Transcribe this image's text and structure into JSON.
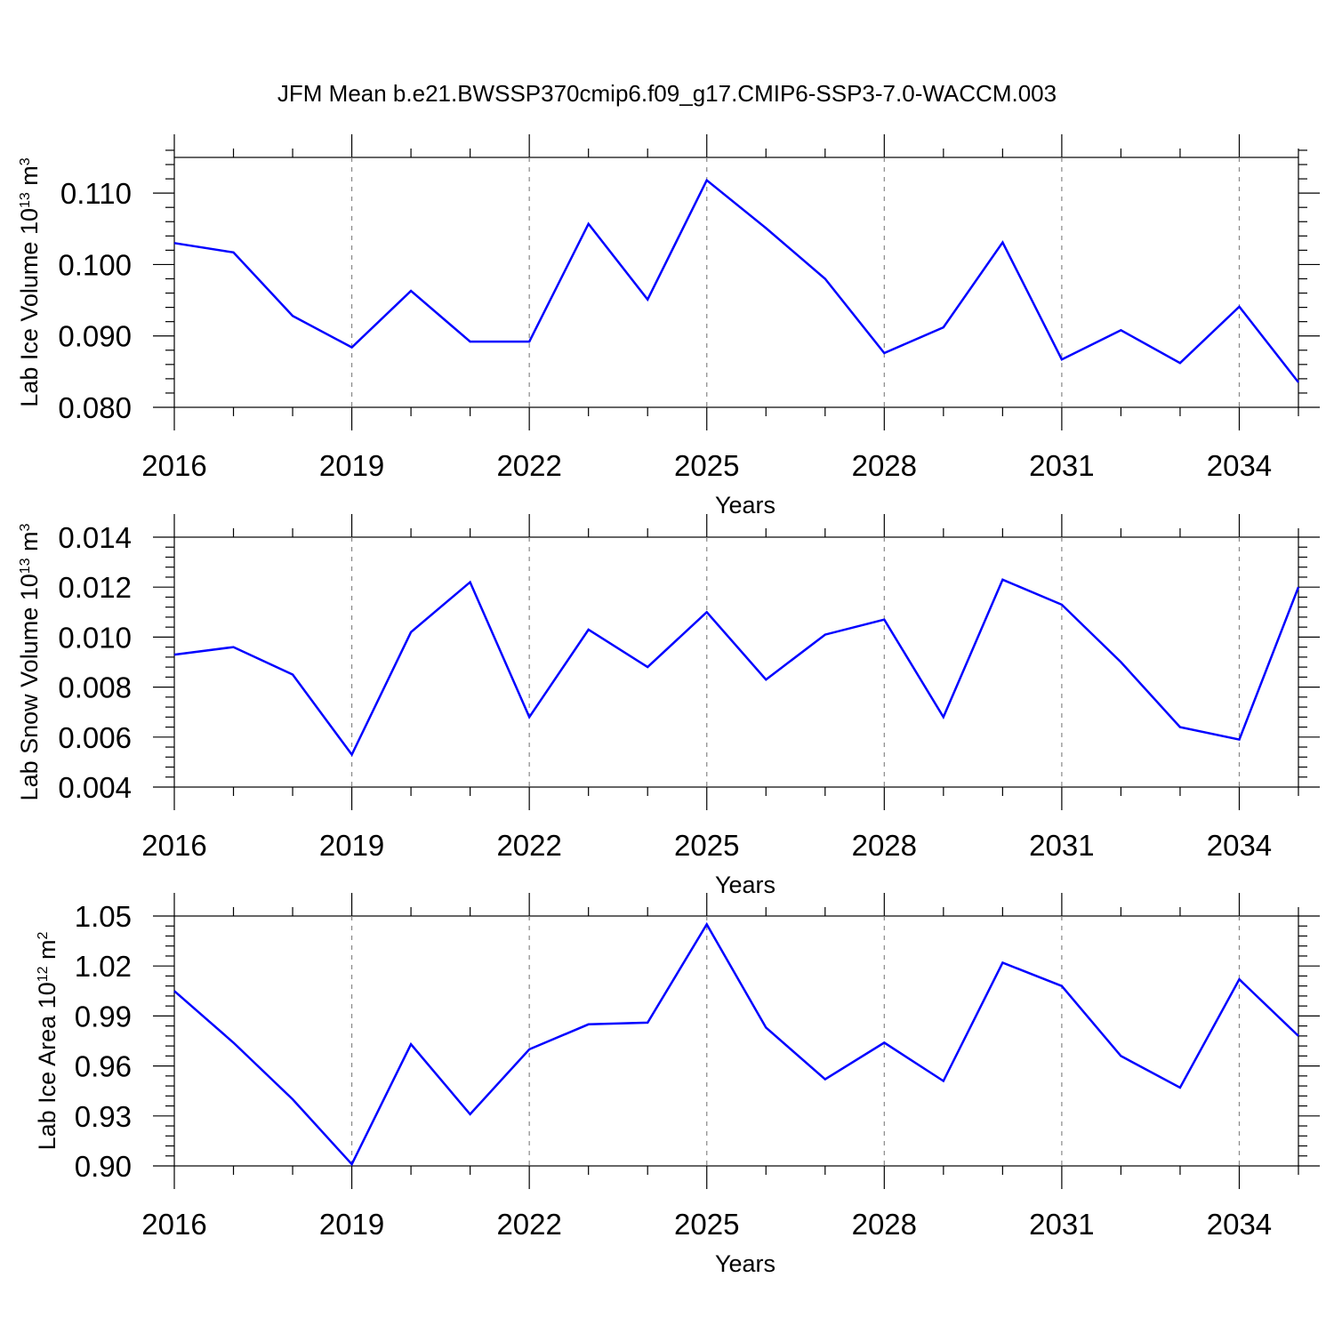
{
  "title": "JFM Mean b.e21.BWSSP370cmip6.f09_g17.CMIP6-SSP3-7.0-WACCM.003",
  "colors": {
    "line": "#0000ff",
    "axis": "#000000",
    "grid": "#888888"
  },
  "chart_data": [
    {
      "type": "line",
      "ylabel": "Lab Ice Volume 10",
      "ylabel_exp": "13",
      "ylabel_unit": " m",
      "ylabel_unit_exp": "3",
      "xlabel": "Years",
      "xlim": [
        2016,
        2035
      ],
      "ylim": [
        0.08,
        0.115
      ],
      "xticks": [
        2016,
        2019,
        2022,
        2025,
        2028,
        2031,
        2034
      ],
      "xtick_labels": [
        "2016",
        "2019",
        "2022",
        "2025",
        "2028",
        "2031",
        "2034"
      ],
      "yticks": [
        0.08,
        0.09,
        0.1,
        0.11
      ],
      "ytick_labels": [
        "0.080",
        "0.090",
        "0.100",
        "0.110"
      ],
      "grid": "vertical dashed at major x ticks",
      "x": [
        2016,
        2017,
        2018,
        2019,
        2020,
        2021,
        2022,
        2023,
        2024,
        2025,
        2026,
        2027,
        2028,
        2029,
        2030,
        2031,
        2032,
        2033,
        2034,
        2035
      ],
      "y": [
        0.103,
        0.1017,
        0.0928,
        0.0884,
        0.0963,
        0.0892,
        0.0892,
        0.1057,
        0.0951,
        0.1118,
        0.1051,
        0.098,
        0.0876,
        0.0912,
        0.1031,
        0.0867,
        0.0908,
        0.0862,
        0.0941,
        0.0835
      ]
    },
    {
      "type": "line",
      "ylabel": "Lab Snow Volume 10",
      "ylabel_exp": "13",
      "ylabel_unit": " m",
      "ylabel_unit_exp": "3",
      "xlabel": "Years",
      "xlim": [
        2016,
        2035
      ],
      "ylim": [
        0.004,
        0.014
      ],
      "xticks": [
        2016,
        2019,
        2022,
        2025,
        2028,
        2031,
        2034
      ],
      "xtick_labels": [
        "2016",
        "2019",
        "2022",
        "2025",
        "2028",
        "2031",
        "2034"
      ],
      "yticks": [
        0.004,
        0.006,
        0.008,
        0.01,
        0.012,
        0.014
      ],
      "ytick_labels": [
        "0.004",
        "0.006",
        "0.008",
        "0.010",
        "0.012",
        "0.014"
      ],
      "grid": "vertical dashed at major x ticks",
      "x": [
        2016,
        2017,
        2018,
        2019,
        2020,
        2021,
        2022,
        2023,
        2024,
        2025,
        2026,
        2027,
        2028,
        2029,
        2030,
        2031,
        2032,
        2033,
        2034,
        2035
      ],
      "y": [
        0.0093,
        0.0096,
        0.0085,
        0.0053,
        0.0102,
        0.0122,
        0.0068,
        0.0103,
        0.0088,
        0.011,
        0.0083,
        0.0101,
        0.0107,
        0.0068,
        0.0123,
        0.0113,
        0.009,
        0.0064,
        0.0059,
        0.012
      ]
    },
    {
      "type": "line",
      "ylabel": "Lab Ice Area 10",
      "ylabel_exp": "12",
      "ylabel_unit": " m",
      "ylabel_unit_exp": "2",
      "xlabel": "Years",
      "xlim": [
        2016,
        2035
      ],
      "ylim": [
        0.9,
        1.05
      ],
      "xticks": [
        2016,
        2019,
        2022,
        2025,
        2028,
        2031,
        2034
      ],
      "xtick_labels": [
        "2016",
        "2019",
        "2022",
        "2025",
        "2028",
        "2031",
        "2034"
      ],
      "yticks": [
        0.9,
        0.93,
        0.96,
        0.99,
        1.02,
        1.05
      ],
      "ytick_labels": [
        "0.90",
        "0.93",
        "0.96",
        "0.99",
        "1.02",
        "1.05"
      ],
      "grid": "vertical dashed at major x ticks",
      "x": [
        2016,
        2017,
        2018,
        2019,
        2020,
        2021,
        2022,
        2023,
        2024,
        2025,
        2026,
        2027,
        2028,
        2029,
        2030,
        2031,
        2032,
        2033,
        2034,
        2035
      ],
      "y": [
        1.005,
        0.974,
        0.94,
        0.901,
        0.973,
        0.931,
        0.97,
        0.985,
        0.986,
        1.045,
        0.983,
        0.952,
        0.974,
        0.951,
        1.022,
        1.008,
        0.966,
        0.947,
        1.012,
        0.978
      ]
    }
  ]
}
